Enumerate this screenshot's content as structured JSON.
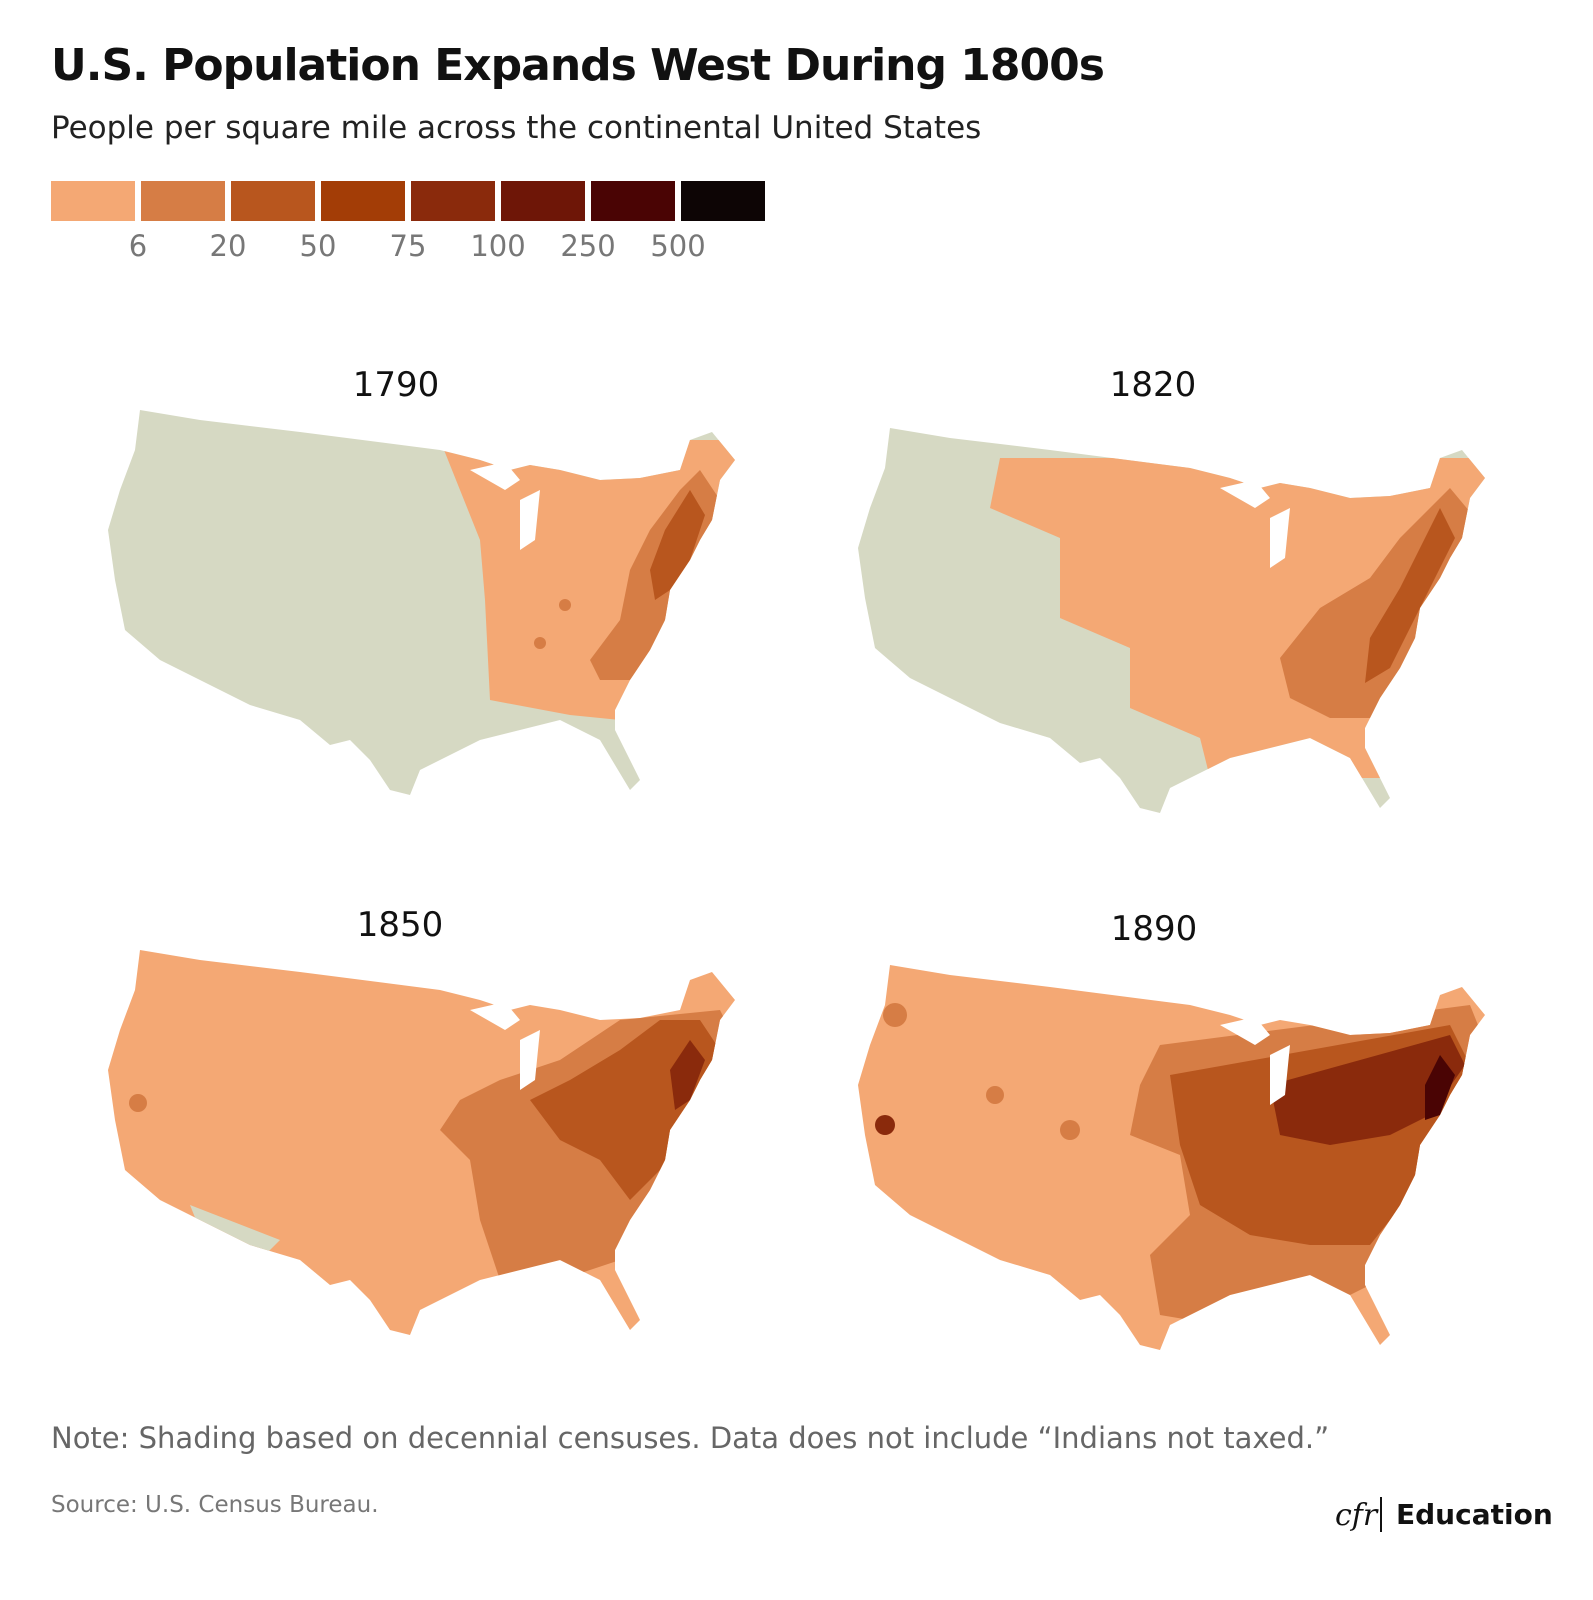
{
  "header": {
    "title": "U.S. Population Expands West During 1800s",
    "subtitle": "People per square mile across the continental United States"
  },
  "legend": {
    "colors": [
      "#f4a874",
      "#d67d45",
      "#b8561e",
      "#a33d06",
      "#8a2a0c",
      "#6e1607",
      "#4a0404",
      "#0d0505"
    ],
    "thresholds": [
      6,
      20,
      50,
      75,
      100,
      250,
      500
    ]
  },
  "maps": [
    {
      "title": "1790"
    },
    {
      "title": "1820"
    },
    {
      "title": "1850"
    },
    {
      "title": "1890"
    }
  ],
  "footer": {
    "note": "Note: Shading based on decennial censuses. Data does not include “Indians not taxed.”",
    "source": "Source: U.S. Census Bureau.",
    "logo": "cfr",
    "brand": "Education"
  }
}
